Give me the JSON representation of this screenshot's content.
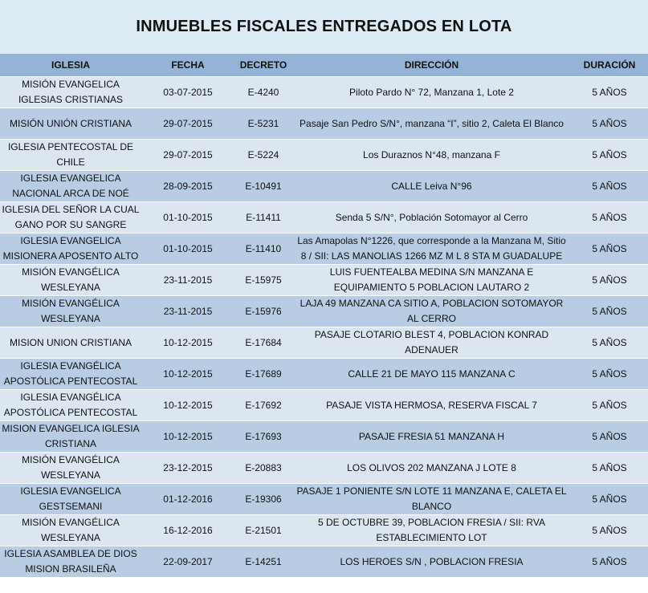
{
  "title": "INMUEBLES FISCALES ENTREGADOS EN LOTA",
  "colors": {
    "header_bg": "#95b3d7",
    "row_light": "#dce6f1",
    "row_dark": "#b8cce4",
    "title_bg": "#dcebf4"
  },
  "columns": [
    "IGLESIA",
    "FECHA",
    "DECRETO",
    "DIRECCIÓN",
    "DURACIÓN"
  ],
  "rows": [
    [
      "MISIÓN EVANGELICA IGLESIAS CRISTIANAS",
      "03-07-2015",
      "E-4240",
      "Piloto Pardo N° 72, Manzana 1, Lote 2",
      "5 AÑOS"
    ],
    [
      "MISIÓN UNIÓN CRISTIANA",
      "29-07-2015",
      "E-5231",
      "Pasaje San Pedro S/N°, manzana “I”, sitio 2, Caleta El Blanco",
      "5 AÑOS"
    ],
    [
      "IGLESIA PENTECOSTAL DE CHILE",
      "29-07-2015",
      "E-5224",
      "Los Duraznos N°48, manzana F",
      "5 AÑOS"
    ],
    [
      "IGLESIA EVANGELICA NACIONAL ARCA DE NOÉ",
      "28-09-2015",
      "E-10491",
      "CALLE Leiva N°96",
      "5 AÑOS"
    ],
    [
      "IGLESIA DEL SEÑOR LA CUAL GANO POR SU SANGRE",
      "01-10-2015",
      "E-11411",
      "Senda 5 S/N°, Población Sotomayor al Cerro",
      "5 AÑOS"
    ],
    [
      "IGLESIA EVANGELICA MISIONERA APOSENTO ALTO",
      "01-10-2015",
      "E-11410",
      "Las Amapolas N°1226, que corresponde a la Manzana M, Sitio 8 / SII: LAS MANOLIAS 1266 MZ M L 8 STA M GUADALUPE",
      "5 AÑOS"
    ],
    [
      "MISIÓN EVANGÉLICA WESLEYANA",
      "23-11-2015",
      "E-15975",
      "LUIS FUENTEALBA MEDINA S/N MANZANA E EQUIPAMIENTO 5 POBLACION LAUTARO 2",
      "5 AÑOS"
    ],
    [
      "MISIÓN EVANGÉLICA WESLEYANA",
      "23-11-2015",
      "E-15976",
      "LAJA 49 MANZANA CA SITIO A, POBLACION SOTOMAYOR AL CERRO",
      "5 AÑOS"
    ],
    [
      "MISION UNION CRISTIANA",
      "10-12-2015",
      "E-17684",
      "PASAJE CLOTARIO BLEST 4, POBLACION KONRAD ADENAUER",
      "5 AÑOS"
    ],
    [
      "IGLESIA EVANGÉLICA APOSTÓLICA PENTECOSTAL",
      "10-12-2015",
      "E-17689",
      "CALLE 21 DE MAYO 115 MANZANA C",
      "5 AÑOS"
    ],
    [
      "IGLESIA EVANGÉLICA APOSTÓLICA PENTECOSTAL",
      "10-12-2015",
      "E-17692",
      "PASAJE VISTA HERMOSA, RESERVA FISCAL 7",
      "5 AÑOS"
    ],
    [
      "MISION EVANGELICA IGLESIA CRISTIANA",
      "10-12-2015",
      "E-17693",
      "PASAJE FRESIA 51 MANZANA H",
      "5 AÑOS"
    ],
    [
      "MISIÓN EVANGÉLICA WESLEYANA",
      "23-12-2015",
      "E-20883",
      "LOS OLIVOS 202 MANZANA J LOTE 8",
      "5 AÑOS"
    ],
    [
      "IGLESIA EVANGELICA GESTSEMANI",
      "01-12-2016",
      "E-19306",
      "PASAJE 1 PONIENTE S/N LOTE 11 MANZANA E, CALETA EL BLANCO",
      "5 AÑOS"
    ],
    [
      "MISIÓN EVANGÉLICA WESLEYANA",
      "16-12-2016",
      "E-21501",
      "5 DE OCTUBRE 39, POBLACION FRESIA  / SII: RVA ESTABLECIMIENTO LOT",
      "5 AÑOS"
    ],
    [
      "IGLESIA ASAMBLEA DE DIOS MISION BRASILEÑA",
      "22-09-2017",
      "E-14251",
      "LOS HEROES S/N , POBLACION FRESIA",
      "5 AÑOS"
    ]
  ]
}
